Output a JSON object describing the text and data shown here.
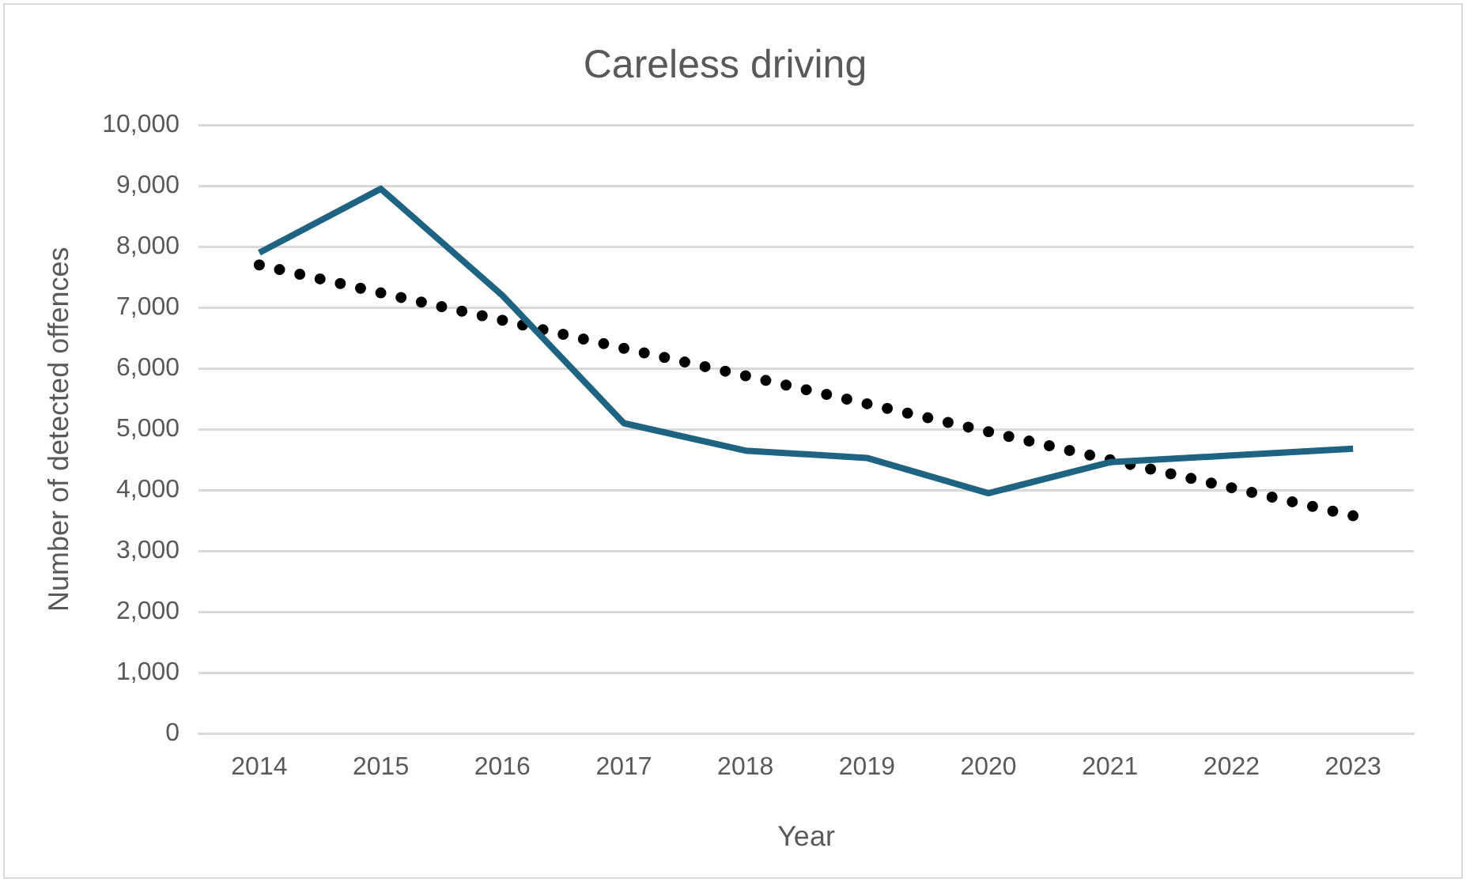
{
  "chart_data": {
    "type": "line",
    "title": "Careless driving",
    "xlabel": "Year",
    "ylabel": "Number of detected offences",
    "categories": [
      "2014",
      "2015",
      "2016",
      "2017",
      "2018",
      "2019",
      "2020",
      "2021",
      "2022",
      "2023"
    ],
    "series": [
      {
        "color": "#1f6382",
        "values": [
          7900,
          8950,
          7200,
          5100,
          4650,
          4530,
          3950,
          4460,
          4570,
          4680
        ],
        "line_style": "solid",
        "marker": "none"
      },
      {
        "type": "line",
        "color": "#000000",
        "values": [
          7700,
          7240,
          6790,
          6330,
          5880,
          5420,
          4960,
          4500,
          4040,
          3580
        ],
        "line_style": "dotted",
        "marker": "none"
      }
    ],
    "ylim": [
      0,
      10000
    ],
    "yticks": [
      0,
      {
        "value": 1000,
        "label": "1,000"
      },
      {
        "value": 2000,
        "label": "2,000"
      },
      {
        "value": 3000,
        "label": "3,000"
      },
      {
        "value": 4000,
        "label": "4,000"
      },
      {
        "value": 5000,
        "label": "5,000"
      },
      {
        "value": 6000,
        "label": "6,000"
      },
      {
        "value": 7000,
        "label": "7,000"
      },
      {
        "value": 8000,
        "label": "8,000"
      },
      {
        "value": 9000,
        "label": "9,000"
      },
      {
        "value": 10000,
        "label": "10,000"
      }
    ],
    "grid": "y",
    "legend": false
  }
}
